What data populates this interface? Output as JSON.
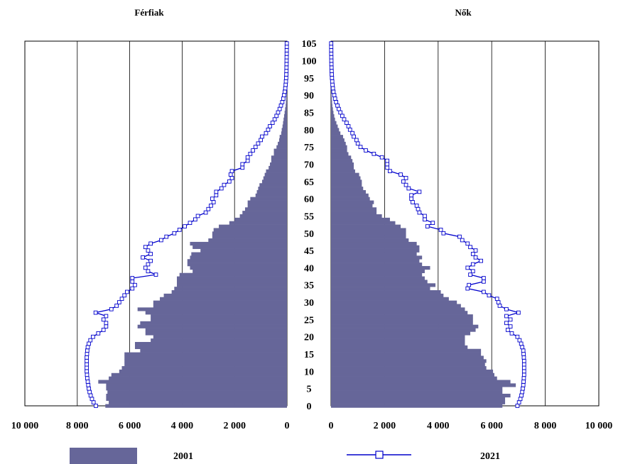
{
  "chart_data": [
    {
      "type": "bar",
      "orientation": "horizontal",
      "side": "left",
      "title": "Férfiak",
      "x_ticks": [
        "10 000",
        "8 000",
        "6 000",
        "4 000",
        "2 000",
        "0"
      ],
      "xlim": [
        0,
        10000
      ],
      "grid": true,
      "ages": [
        0,
        1,
        2,
        3,
        4,
        5,
        6,
        7,
        8,
        9,
        10,
        11,
        12,
        13,
        14,
        15,
        16,
        17,
        18,
        19,
        20,
        21,
        22,
        23,
        24,
        25,
        26,
        27,
        28,
        29,
        30,
        31,
        32,
        33,
        34,
        35,
        36,
        37,
        38,
        39,
        40,
        41,
        42,
        43,
        44,
        45,
        46,
        47,
        48,
        49,
        50,
        51,
        52,
        53,
        54,
        55,
        56,
        57,
        58,
        59,
        60,
        61,
        62,
        63,
        64,
        65,
        66,
        67,
        68,
        69,
        70,
        71,
        72,
        73,
        74,
        75,
        76,
        77,
        78,
        79,
        80,
        81,
        82,
        83,
        84,
        85,
        86,
        87,
        88,
        89,
        90,
        91,
        92,
        93,
        94,
        95,
        96,
        97,
        98,
        99,
        100,
        101,
        102,
        103,
        104,
        105
      ],
      "series": [
        {
          "name": "2001",
          "color": "#666699",
          "values": [
            6930,
            6800,
            6900,
            6900,
            6850,
            6900,
            6900,
            7200,
            6800,
            6700,
            6400,
            6300,
            6200,
            6200,
            6200,
            6200,
            5600,
            5800,
            5800,
            5200,
            5100,
            5400,
            5400,
            5700,
            5600,
            5200,
            5200,
            5400,
            5700,
            5100,
            5100,
            4850,
            4700,
            4400,
            4300,
            4200,
            4200,
            4200,
            4100,
            3600,
            3700,
            3800,
            3800,
            3700,
            3650,
            3300,
            3600,
            3700,
            3000,
            2850,
            2850,
            2800,
            2600,
            2200,
            2000,
            1800,
            1700,
            1600,
            1500,
            1500,
            1400,
            1200,
            1150,
            1100,
            1050,
            950,
            900,
            850,
            800,
            700,
            650,
            600,
            600,
            500,
            500,
            400,
            350,
            300,
            280,
            220,
            200,
            170,
            150,
            130,
            110,
            90,
            70,
            50,
            40,
            30,
            20,
            15,
            10,
            8,
            5,
            4,
            3,
            2,
            2,
            1,
            1,
            1,
            1,
            1,
            1,
            1
          ]
        },
        {
          "name": "2021",
          "color": "#0000cc",
          "values": [
            7290,
            7380,
            7440,
            7490,
            7530,
            7560,
            7580,
            7600,
            7620,
            7630,
            7640,
            7640,
            7640,
            7640,
            7640,
            7630,
            7620,
            7600,
            7560,
            7500,
            7400,
            7200,
            7000,
            6900,
            6900,
            7000,
            6900,
            7300,
            6700,
            6500,
            6400,
            6300,
            6200,
            6100,
            5900,
            5800,
            5900,
            5900,
            5000,
            5300,
            5400,
            5300,
            5200,
            5500,
            5200,
            5300,
            5400,
            5200,
            4800,
            4600,
            4300,
            4100,
            3900,
            3700,
            3500,
            3400,
            3100,
            3000,
            2900,
            2800,
            2850,
            2700,
            2700,
            2500,
            2400,
            2200,
            2100,
            2150,
            2100,
            1700,
            1700,
            1500,
            1500,
            1400,
            1300,
            1200,
            1100,
            1000,
            950,
            800,
            720,
            650,
            550,
            470,
            400,
            340,
            280,
            230,
            180,
            140,
            110,
            85,
            65,
            50,
            40,
            30,
            25,
            20,
            18,
            16,
            14,
            12,
            10,
            9,
            8,
            7
          ]
        }
      ]
    },
    {
      "type": "bar",
      "orientation": "horizontal",
      "side": "right",
      "title": "Nők",
      "x_ticks": [
        "0",
        "2 000",
        "4 000",
        "6 000",
        "8 000",
        "10 000"
      ],
      "xlim": [
        0,
        10000
      ],
      "grid": true,
      "ages": [
        0,
        1,
        2,
        3,
        4,
        5,
        6,
        7,
        8,
        9,
        10,
        11,
        12,
        13,
        14,
        15,
        16,
        17,
        18,
        19,
        20,
        21,
        22,
        23,
        24,
        25,
        26,
        27,
        28,
        29,
        30,
        31,
        32,
        33,
        34,
        35,
        36,
        37,
        38,
        39,
        40,
        41,
        42,
        43,
        44,
        45,
        46,
        47,
        48,
        49,
        50,
        51,
        52,
        53,
        54,
        55,
        56,
        57,
        58,
        59,
        60,
        61,
        62,
        63,
        64,
        65,
        66,
        67,
        68,
        69,
        70,
        71,
        72,
        73,
        74,
        75,
        76,
        77,
        78,
        79,
        80,
        81,
        82,
        83,
        84,
        85,
        86,
        87,
        88,
        89,
        90,
        91,
        92,
        93,
        94,
        95,
        96,
        97,
        98,
        99,
        100,
        101,
        102,
        103,
        104,
        105
      ],
      "series": [
        {
          "name": "2001",
          "color": "#666699",
          "values": [
            6400,
            6500,
            6500,
            6700,
            6400,
            6400,
            6900,
            6700,
            6200,
            6100,
            6050,
            5800,
            5750,
            5800,
            5700,
            5600,
            5600,
            5100,
            5000,
            5000,
            5000,
            5200,
            5400,
            5500,
            5300,
            5300,
            5300,
            5100,
            5000,
            4850,
            4700,
            4400,
            4200,
            4100,
            3700,
            3900,
            3600,
            3500,
            3400,
            3500,
            3700,
            3400,
            3300,
            3400,
            3200,
            3300,
            3300,
            3200,
            2900,
            2800,
            2800,
            2800,
            2600,
            2400,
            2200,
            1900,
            1700,
            1700,
            1550,
            1600,
            1450,
            1400,
            1300,
            1200,
            1150,
            1150,
            1100,
            1050,
            900,
            850,
            850,
            800,
            750,
            650,
            600,
            600,
            550,
            500,
            450,
            350,
            300,
            250,
            200,
            150,
            120,
            90,
            70,
            50,
            40,
            30,
            20,
            15,
            10,
            8,
            5,
            4,
            3,
            2,
            2,
            1,
            1,
            1,
            1,
            1,
            1,
            1
          ]
        },
        {
          "name": "2021",
          "color": "#0000cc",
          "values": [
            6960,
            7020,
            7070,
            7110,
            7140,
            7160,
            7180,
            7190,
            7200,
            7210,
            7210,
            7210,
            7210,
            7210,
            7200,
            7190,
            7180,
            7140,
            7100,
            7040,
            6960,
            6750,
            6600,
            6700,
            6550,
            6700,
            6550,
            7000,
            6550,
            6300,
            6250,
            6200,
            5900,
            5700,
            5100,
            5150,
            5700,
            5700,
            5200,
            5300,
            5100,
            5300,
            5600,
            5400,
            5300,
            5400,
            5200,
            5100,
            4900,
            4800,
            4200,
            4100,
            3600,
            3800,
            3500,
            3500,
            3300,
            3250,
            3200,
            3050,
            3000,
            3000,
            3300,
            2900,
            2800,
            2700,
            2800,
            2600,
            2200,
            2100,
            2100,
            2100,
            1900,
            1600,
            1300,
            1100,
            1000,
            950,
            850,
            800,
            710,
            650,
            580,
            490,
            420,
            350,
            290,
            240,
            190,
            150,
            120,
            90,
            70,
            55,
            45,
            35,
            28,
            22,
            18,
            15,
            13,
            11,
            9,
            8,
            7,
            6
          ]
        }
      ]
    }
  ],
  "legend": {
    "items": [
      {
        "label": "2001",
        "type": "bar",
        "color": "#666699"
      },
      {
        "label": "2021",
        "type": "line-marker",
        "color": "#0000cc"
      }
    ]
  },
  "age_axis": {
    "ticks": [
      "0",
      "5",
      "10",
      "15",
      "20",
      "25",
      "30",
      "35",
      "40",
      "45",
      "50",
      "55",
      "60",
      "65",
      "70",
      "75",
      "80",
      "85",
      "90",
      "95",
      "100",
      "105"
    ]
  }
}
